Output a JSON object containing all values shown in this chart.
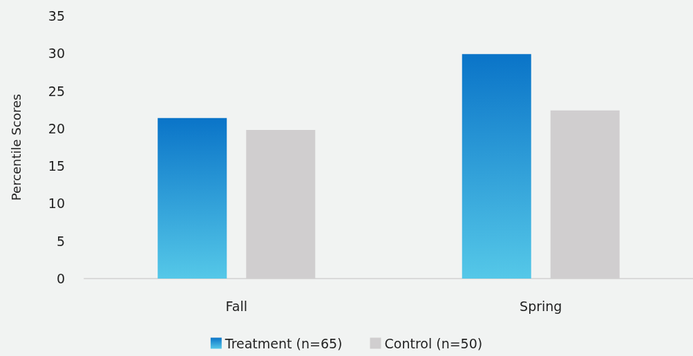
{
  "chart_data": {
    "type": "bar",
    "ylabel": "Percentile Scores",
    "categories": [
      "Fall",
      "Spring"
    ],
    "series": [
      {
        "name": "Treatment (n=65)",
        "color": "#0a74c8",
        "values": [
          21.4,
          29.9
        ]
      },
      {
        "name": "Control (n=50)",
        "color": "#d0cecf",
        "values": [
          19.8,
          22.4
        ]
      }
    ],
    "ylim": [
      0,
      35
    ],
    "yticks": [
      0,
      5,
      10,
      15,
      20,
      25,
      30,
      35
    ],
    "grid": false,
    "legend": "bottom"
  }
}
